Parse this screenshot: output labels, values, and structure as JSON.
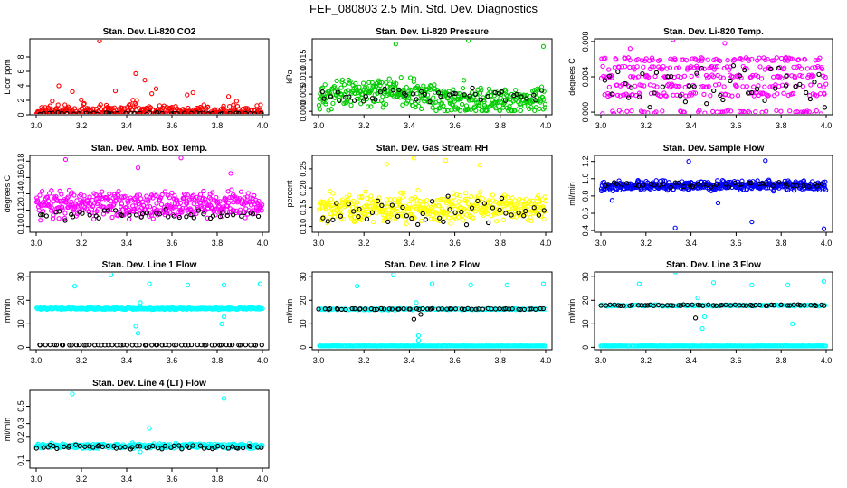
{
  "title": "FEF_080803  2.5 Min. Std. Dev. Diagnostics",
  "colors": {
    "red": "#ff0000",
    "green": "#00cc00",
    "magenta": "#ff00ff",
    "yellow": "#ffff00",
    "blue": "#0000ff",
    "cyan": "#00ffff",
    "black": "#000000"
  },
  "chart_data": [
    {
      "type": "scatter",
      "title": "Stan. Dev. Li-820 CO2",
      "ylabel": "Licor ppm",
      "xlim": [
        3.0,
        4.0
      ],
      "ylim": [
        0,
        10.5
      ],
      "xticks": [
        "3.0",
        "3.2",
        "3.4",
        "3.6",
        "3.8",
        "4.0"
      ],
      "yticks": [
        {
          "v": 0,
          "label": "0"
        },
        {
          "v": 2,
          "label": "2"
        },
        {
          "v": 4,
          "label": "4"
        },
        {
          "v": 6,
          "label": "6"
        },
        {
          "v": 8,
          "label": "8"
        }
      ],
      "series": [
        {
          "name": "main",
          "color": "red",
          "base": 0.5,
          "spread": 1.0,
          "count": 330,
          "outliers": [
            [
              3.28,
              10.2
            ],
            [
              3.44,
              5.7
            ],
            [
              3.48,
              4.8
            ],
            [
              3.1,
              4.0
            ],
            [
              3.16,
              3.2
            ],
            [
              3.53,
              3.6
            ],
            [
              3.35,
              3.3
            ]
          ]
        },
        {
          "name": "reference",
          "color": "black",
          "base": 0.2,
          "spread": 0.15,
          "count": 45,
          "outliers": []
        }
      ]
    },
    {
      "type": "scatter",
      "title": "Stan. Dev. Li-820 Pressure",
      "ylabel": "kPa",
      "xlim": [
        3.0,
        4.0
      ],
      "ylim": [
        -0.001,
        0.021
      ],
      "xticks": [
        "3.0",
        "3.2",
        "3.4",
        "3.6",
        "3.8",
        "4.0"
      ],
      "yticks": [
        {
          "v": 0,
          "label": "0.000"
        },
        {
          "v": 0.005,
          "label": "0.005"
        },
        {
          "v": 0.01,
          "label": "0.010"
        },
        {
          "v": 0.015,
          "label": "0.015"
        }
      ],
      "series": [
        {
          "name": "main",
          "color": "green",
          "base": 0.004,
          "spread": 0.005,
          "count": 400,
          "outliers": [
            [
              3.34,
              0.0195
            ],
            [
              3.66,
              0.0205
            ],
            [
              3.99,
              0.0188
            ],
            [
              3.64,
              0.009
            ]
          ]
        },
        {
          "name": "reference",
          "color": "black",
          "base": 0.0045,
          "spread": 0.003,
          "count": 45,
          "outliers": []
        }
      ]
    },
    {
      "type": "scatter",
      "title": "Stan. Dev. Li-820 Temp.",
      "ylabel": "degrees C",
      "xlim": [
        3.0,
        4.0
      ],
      "ylim": [
        -0.0003,
        0.0083
      ],
      "xticks": [
        "3.0",
        "3.2",
        "3.4",
        "3.6",
        "3.8",
        "4.0"
      ],
      "yticks": [
        {
          "v": 0,
          "label": "0.000"
        },
        {
          "v": 0.004,
          "label": "0.004"
        },
        {
          "v": 0.008,
          "label": "0.008"
        }
      ],
      "series": [
        {
          "name": "main",
          "color": "magenta",
          "base": 0.003,
          "spread": 0.004,
          "count": 380,
          "outliers": [
            [
              3.13,
              0.0072
            ],
            [
              3.32,
              0.0082
            ],
            [
              3.55,
              0.0078
            ]
          ]
        },
        {
          "name": "reference",
          "color": "black",
          "base": 0.003,
          "spread": 0.003,
          "count": 45,
          "outliers": []
        }
      ]
    },
    {
      "type": "scatter",
      "title": "Stan. Dev. Amb. Box Temp.",
      "ylabel": "degrees C",
      "xlim": [
        3.0,
        4.0
      ],
      "ylim": [
        0.093,
        0.187
      ],
      "xticks": [
        "3.0",
        "3.2",
        "3.4",
        "3.6",
        "3.8",
        "4.0"
      ],
      "yticks": [
        {
          "v": 0.1,
          "label": "0.10"
        },
        {
          "v": 0.12,
          "label": "0.12"
        },
        {
          "v": 0.14,
          "label": "0.14"
        },
        {
          "v": 0.16,
          "label": "0.16"
        },
        {
          "v": 0.18,
          "label": "0.18"
        }
      ],
      "series": [
        {
          "name": "main",
          "color": "magenta",
          "base": 0.126,
          "spread": 0.02,
          "count": 420,
          "outliers": [
            [
              3.13,
              0.182
            ],
            [
              3.64,
              0.184
            ],
            [
              3.86,
              0.165
            ],
            [
              3.45,
              0.172
            ]
          ]
        },
        {
          "name": "reference",
          "color": "black",
          "base": 0.115,
          "spread": 0.008,
          "count": 45,
          "outliers": []
        }
      ]
    },
    {
      "type": "scatter",
      "title": "Stan. Dev. Gas Stream RH",
      "ylabel": "percent",
      "xlim": [
        3.0,
        4.0
      ],
      "ylim": [
        0.085,
        0.285
      ],
      "xticks": [
        "3.0",
        "3.2",
        "3.4",
        "3.6",
        "3.8",
        "4.0"
      ],
      "yticks": [
        {
          "v": 0.1,
          "label": "0.10"
        },
        {
          "v": 0.15,
          "label": "0.15"
        },
        {
          "v": 0.2,
          "label": "0.20"
        },
        {
          "v": 0.25,
          "label": "0.25"
        }
      ],
      "series": [
        {
          "name": "main",
          "color": "yellow",
          "base": 0.15,
          "spread": 0.045,
          "count": 420,
          "outliers": [
            [
              3.42,
              0.278
            ],
            [
              3.56,
              0.272
            ],
            [
              3.71,
              0.26
            ],
            [
              3.3,
              0.262
            ]
          ]
        },
        {
          "name": "reference",
          "color": "black",
          "base": 0.14,
          "spread": 0.04,
          "count": 45,
          "outliers": []
        }
      ]
    },
    {
      "type": "scatter",
      "title": "Stan. Dev. Sample Flow",
      "ylabel": "ml/min",
      "xlim": [
        3.0,
        4.0
      ],
      "ylim": [
        0.38,
        1.27
      ],
      "xticks": [
        "3.0",
        "3.2",
        "3.4",
        "3.6",
        "3.8",
        "4.0"
      ],
      "yticks": [
        {
          "v": 0.4,
          "label": "0.4"
        },
        {
          "v": 0.6,
          "label": "0.6"
        },
        {
          "v": 0.8,
          "label": "0.8"
        },
        {
          "v": 1.0,
          "label": "1.0"
        },
        {
          "v": 1.2,
          "label": "1.2"
        }
      ],
      "series": [
        {
          "name": "main",
          "color": "blue",
          "base": 0.92,
          "spread": 0.07,
          "count": 420,
          "outliers": [
            [
              3.39,
              1.2
            ],
            [
              3.73,
              1.21
            ],
            [
              3.67,
              0.5
            ],
            [
              3.99,
              0.42
            ],
            [
              3.33,
              0.43
            ],
            [
              3.05,
              0.75
            ],
            [
              3.52,
              0.72
            ]
          ]
        },
        {
          "name": "reference",
          "color": "black",
          "base": 0.93,
          "spread": 0.04,
          "count": 45,
          "outliers": []
        }
      ]
    },
    {
      "type": "scatter",
      "title": "Stan. Dev. Line 1 Flow",
      "ylabel": "ml/min",
      "xlim": [
        3.0,
        4.0
      ],
      "ylim": [
        -1,
        32
      ],
      "xticks": [
        "3.0",
        "3.2",
        "3.4",
        "3.6",
        "3.8",
        "4.0"
      ],
      "yticks": [
        {
          "v": 0,
          "label": "0"
        },
        {
          "v": 10,
          "label": "10"
        },
        {
          "v": 20,
          "label": "20"
        },
        {
          "v": 30,
          "label": "30"
        }
      ],
      "series": [
        {
          "name": "main",
          "color": "cyan",
          "base": 16.5,
          "spread": 0.5,
          "count": 330,
          "outliers": [
            [
              3.17,
              26
            ],
            [
              3.33,
              31
            ],
            [
              3.5,
              27
            ],
            [
              3.67,
              26.5
            ],
            [
              3.83,
              26.5
            ],
            [
              3.99,
              27
            ],
            [
              3.45,
              6
            ],
            [
              3.44,
              9
            ],
            [
              3.82,
              10
            ],
            [
              3.83,
              13
            ],
            [
              3.46,
              19
            ]
          ]
        },
        {
          "name": "reference",
          "color": "black",
          "base": 1.0,
          "spread": 0.1,
          "count": 60,
          "outliers": []
        }
      ]
    },
    {
      "type": "scatter",
      "title": "Stan. Dev. Line 2 Flow",
      "ylabel": "ml/min",
      "xlim": [
        3.0,
        4.0
      ],
      "ylim": [
        -1,
        32
      ],
      "xticks": [
        "3.0",
        "3.2",
        "3.4",
        "3.6",
        "3.8",
        "4.0"
      ],
      "yticks": [
        {
          "v": 0,
          "label": "0"
        },
        {
          "v": 10,
          "label": "10"
        },
        {
          "v": 20,
          "label": "20"
        },
        {
          "v": 30,
          "label": "30"
        }
      ],
      "series": [
        {
          "name": "cyan-upper",
          "color": "cyan",
          "base": 16.2,
          "spread": 0.4,
          "count": 140,
          "outliers": [
            [
              3.17,
              26
            ],
            [
              3.33,
              31
            ],
            [
              3.5,
              27
            ],
            [
              3.67,
              26.5
            ],
            [
              3.83,
              26.5
            ],
            [
              3.99,
              27
            ],
            [
              3.43,
              19
            ],
            [
              3.44,
              5
            ],
            [
              3.44,
              3
            ]
          ]
        },
        {
          "name": "cyan-lower",
          "color": "cyan",
          "base": 0.6,
          "spread": 0.1,
          "count": 260,
          "outliers": []
        },
        {
          "name": "reference",
          "color": "black",
          "base": 16.3,
          "spread": 0.3,
          "count": 60,
          "outliers": [
            [
              3.42,
              12
            ],
            [
              3.45,
              14
            ]
          ]
        }
      ]
    },
    {
      "type": "scatter",
      "title": "Stan. Dev. Line 3 Flow",
      "ylabel": "ml/min",
      "xlim": [
        3.0,
        4.0
      ],
      "ylim": [
        -1,
        32
      ],
      "xticks": [
        "3.0",
        "3.2",
        "3.4",
        "3.6",
        "3.8",
        "4.0"
      ],
      "yticks": [
        {
          "v": 0,
          "label": "0"
        },
        {
          "v": 10,
          "label": "10"
        },
        {
          "v": 20,
          "label": "20"
        },
        {
          "v": 30,
          "label": "30"
        }
      ],
      "series": [
        {
          "name": "cyan-upper",
          "color": "cyan",
          "base": 17.8,
          "spread": 0.4,
          "count": 140,
          "outliers": [
            [
              3.17,
              27
            ],
            [
              3.33,
              32
            ],
            [
              3.5,
              27.5
            ],
            [
              3.67,
              26.5
            ],
            [
              3.83,
              26.5
            ],
            [
              3.99,
              28
            ],
            [
              3.43,
              21
            ],
            [
              3.45,
              8
            ],
            [
              3.46,
              13
            ],
            [
              3.85,
              10
            ]
          ]
        },
        {
          "name": "cyan-lower",
          "color": "cyan",
          "base": 0.6,
          "spread": 0.1,
          "count": 260,
          "outliers": []
        },
        {
          "name": "reference",
          "color": "black",
          "base": 17.9,
          "spread": 0.3,
          "count": 60,
          "outliers": [
            [
              3.42,
              12.5
            ]
          ]
        }
      ]
    },
    {
      "type": "scatter",
      "title": "Stan. Dev. Line 4 (LT) Flow",
      "ylabel": "ml/min",
      "xlim": [
        3.0,
        4.0
      ],
      "ylim": [
        0.08,
        0.8
      ],
      "ylog": true,
      "xticks": [
        "3.0",
        "3.2",
        "3.4",
        "3.6",
        "3.8",
        "4.0"
      ],
      "yticks": [
        {
          "v": 0.1,
          "label": "0.1"
        },
        {
          "v": 0.2,
          "label": "0.2"
        },
        {
          "v": 0.3,
          "label": "0.3"
        },
        {
          "v": 0.5,
          "label": "0.5"
        }
      ],
      "series": [
        {
          "name": "main",
          "color": "cyan",
          "base": 0.155,
          "spread": 0.015,
          "count": 330,
          "outliers": [
            [
              3.16,
              0.72
            ],
            [
              3.83,
              0.63
            ],
            [
              3.5,
              0.26
            ],
            [
              3.46,
              0.13
            ]
          ]
        },
        {
          "name": "reference",
          "color": "black",
          "base": 0.15,
          "spread": 0.012,
          "count": 55,
          "outliers": []
        }
      ]
    }
  ]
}
